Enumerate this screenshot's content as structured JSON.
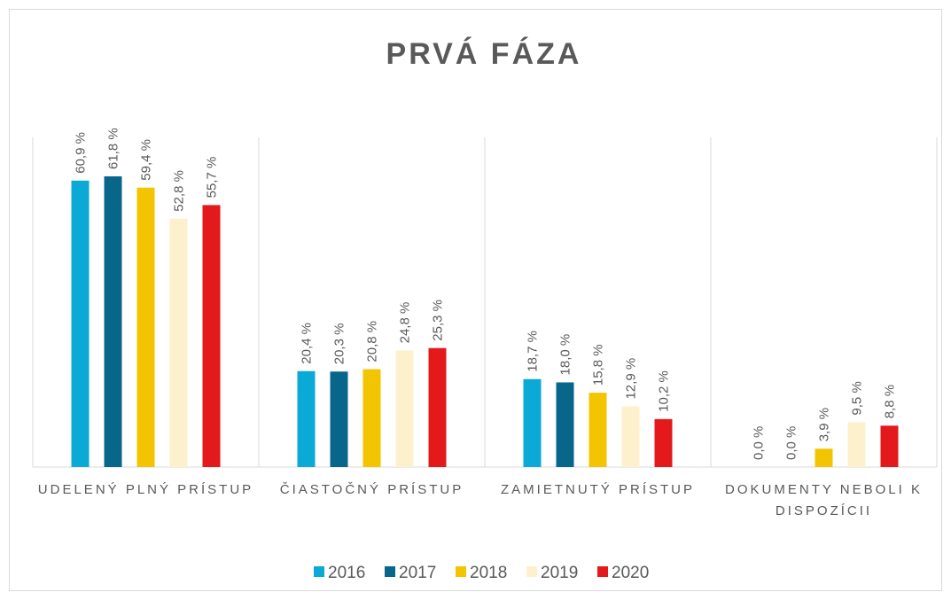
{
  "chart_data": {
    "type": "bar",
    "title": "PRVÁ FÁZA",
    "categories": [
      "UDELENÝ PLNÝ PRÍSTUP",
      "ČIASTOČNÝ PRÍSTUP",
      "ZAMIETNUTÝ PRÍSTUP",
      "DOKUMENTY NEBOLI K DISPOZÍCII"
    ],
    "series": [
      {
        "name": "2016",
        "color": "#0aa9d6",
        "values": [
          60.9,
          20.4,
          18.7,
          0.0
        ],
        "value_labels": [
          "60,9 %",
          "20,4 %",
          "18,7 %",
          "0,0 %"
        ]
      },
      {
        "name": "2017",
        "color": "#08668a",
        "values": [
          61.8,
          20.3,
          18.0,
          0.0
        ],
        "value_labels": [
          "61,8 %",
          "20,3 %",
          "18,0 %",
          "0,0 %"
        ]
      },
      {
        "name": "2018",
        "color": "#f2c500",
        "values": [
          59.4,
          20.8,
          15.8,
          3.9
        ],
        "value_labels": [
          "59,4 %",
          "20,8 %",
          "15,8 %",
          "3,9 %"
        ]
      },
      {
        "name": "2019",
        "color": "#fdf0cc",
        "values": [
          52.8,
          24.8,
          12.9,
          9.5
        ],
        "value_labels": [
          "52,8 %",
          "24,8 %",
          "12,9 %",
          "9,5 %"
        ]
      },
      {
        "name": "2020",
        "color": "#e3191c",
        "values": [
          55.7,
          25.3,
          10.2,
          8.8
        ],
        "value_labels": [
          "55,7 %",
          "25,3 %",
          "10,2 %",
          "8,8 %"
        ]
      }
    ],
    "legend": "bottom"
  }
}
